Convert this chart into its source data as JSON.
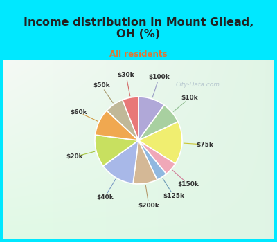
{
  "title": "Income distribution in Mount Gilead,\nOH (%)",
  "subtitle": "All residents",
  "labels": [
    "$100k",
    "$10k",
    "$75k",
    "$150k",
    "$125k",
    "$200k",
    "$40k",
    "$20k",
    "$60k",
    "$50k",
    "$30k"
  ],
  "sizes": [
    10,
    8,
    16,
    5,
    4,
    9,
    13,
    12,
    10,
    7,
    6
  ],
  "colors": [
    "#b0a8d8",
    "#a8d0a0",
    "#f0ee70",
    "#f0a8b8",
    "#90b8e0",
    "#d4b896",
    "#a8b8e8",
    "#c8e060",
    "#f0a850",
    "#c0b898",
    "#e87878"
  ],
  "line_colors": [
    "#9090c0",
    "#88b888",
    "#c8c020",
    "#d07090",
    "#6090b0",
    "#b09060",
    "#7090c0",
    "#a0c030",
    "#d09030",
    "#a09060",
    "#d05858"
  ],
  "bg_top": "#00e8ff",
  "bg_chart_tl": "#e8f8f0",
  "bg_chart_br": "#c0e8d8",
  "title_color": "#222222",
  "subtitle_color": "#dd7733",
  "watermark": "City-Data.com",
  "start_angle": 90,
  "wedge_edge_color": "white",
  "wedge_linewidth": 1.2
}
